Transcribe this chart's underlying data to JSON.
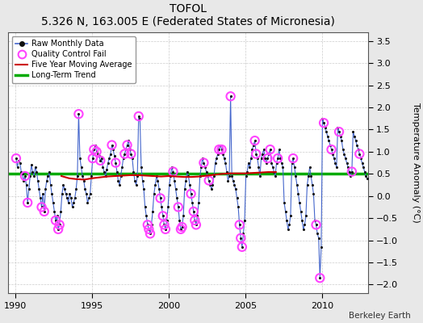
{
  "title": "TOFOL",
  "subtitle": "5.326 N, 163.005 E (Federated States of Micronesia)",
  "ylabel": "Temperature Anomaly (°C)",
  "credit": "Berkeley Earth",
  "xlim": [
    1989.5,
    2013.0
  ],
  "ylim": [
    -2.2,
    3.7
  ],
  "yticks": [
    -2,
    -1.5,
    -1,
    -0.5,
    0,
    0.5,
    1,
    1.5,
    2,
    2.5,
    3,
    3.5
  ],
  "xticks": [
    1990,
    1995,
    2000,
    2005,
    2010
  ],
  "long_term_trend_y": 0.5,
  "fig_bg_color": "#e8e8e8",
  "plot_bg_color": "#ffffff",
  "grid_color": "#cccccc",
  "raw_line_color": "#4466cc",
  "raw_dot_color": "#111111",
  "qc_fail_color": "#ff44ff",
  "moving_avg_color": "#cc0000",
  "trend_color": "#00aa00",
  "raw_data": [
    [
      1990.042,
      0.85
    ],
    [
      1990.125,
      0.65
    ],
    [
      1990.208,
      0.8
    ],
    [
      1990.292,
      0.75
    ],
    [
      1990.375,
      0.55
    ],
    [
      1990.458,
      0.5
    ],
    [
      1990.542,
      0.35
    ],
    [
      1990.625,
      0.45
    ],
    [
      1990.708,
      0.25
    ],
    [
      1990.792,
      -0.15
    ],
    [
      1990.875,
      0.15
    ],
    [
      1990.958,
      0.45
    ],
    [
      1991.042,
      0.7
    ],
    [
      1991.125,
      0.55
    ],
    [
      1991.208,
      0.45
    ],
    [
      1991.292,
      0.65
    ],
    [
      1991.375,
      0.55
    ],
    [
      1991.458,
      0.35
    ],
    [
      1991.542,
      0.15
    ],
    [
      1991.625,
      -0.05
    ],
    [
      1991.708,
      -0.25
    ],
    [
      1991.792,
      0.05
    ],
    [
      1991.875,
      -0.35
    ],
    [
      1991.958,
      0.15
    ],
    [
      1992.042,
      0.35
    ],
    [
      1992.125,
      0.45
    ],
    [
      1992.208,
      0.55
    ],
    [
      1992.292,
      0.25
    ],
    [
      1992.375,
      0.05
    ],
    [
      1992.458,
      -0.15
    ],
    [
      1992.542,
      -0.35
    ],
    [
      1992.625,
      -0.55
    ],
    [
      1992.708,
      -0.45
    ],
    [
      1992.792,
      -0.75
    ],
    [
      1992.875,
      -0.65
    ],
    [
      1992.958,
      -0.35
    ],
    [
      1993.042,
      0.05
    ],
    [
      1993.125,
      0.25
    ],
    [
      1993.208,
      0.15
    ],
    [
      1993.292,
      0.05
    ],
    [
      1993.375,
      -0.05
    ],
    [
      1993.458,
      -0.15
    ],
    [
      1993.542,
      0.05
    ],
    [
      1993.625,
      -0.05
    ],
    [
      1993.708,
      -0.25
    ],
    [
      1993.792,
      -0.15
    ],
    [
      1993.875,
      -0.05
    ],
    [
      1993.958,
      0.15
    ],
    [
      1994.042,
      0.45
    ],
    [
      1994.125,
      1.85
    ],
    [
      1994.208,
      0.85
    ],
    [
      1994.292,
      0.65
    ],
    [
      1994.375,
      0.45
    ],
    [
      1994.458,
      0.35
    ],
    [
      1994.542,
      0.15
    ],
    [
      1994.625,
      0.05
    ],
    [
      1994.708,
      -0.15
    ],
    [
      1994.792,
      -0.05
    ],
    [
      1994.875,
      0.05
    ],
    [
      1994.958,
      0.45
    ],
    [
      1995.042,
      0.85
    ],
    [
      1995.125,
      1.05
    ],
    [
      1995.208,
      1.15
    ],
    [
      1995.292,
      1.0
    ],
    [
      1995.375,
      0.95
    ],
    [
      1995.458,
      0.9
    ],
    [
      1995.542,
      0.8
    ],
    [
      1995.625,
      0.85
    ],
    [
      1995.708,
      0.65
    ],
    [
      1995.792,
      0.55
    ],
    [
      1995.875,
      0.45
    ],
    [
      1995.958,
      0.6
    ],
    [
      1996.042,
      0.75
    ],
    [
      1996.125,
      0.85
    ],
    [
      1996.208,
      0.95
    ],
    [
      1996.292,
      1.15
    ],
    [
      1996.375,
      1.05
    ],
    [
      1996.458,
      0.9
    ],
    [
      1996.542,
      0.75
    ],
    [
      1996.625,
      0.55
    ],
    [
      1996.708,
      0.35
    ],
    [
      1996.792,
      0.25
    ],
    [
      1996.875,
      0.45
    ],
    [
      1996.958,
      0.65
    ],
    [
      1997.042,
      0.85
    ],
    [
      1997.125,
      0.95
    ],
    [
      1997.208,
      1.05
    ],
    [
      1997.292,
      1.15
    ],
    [
      1997.375,
      1.25
    ],
    [
      1997.458,
      1.05
    ],
    [
      1997.542,
      0.95
    ],
    [
      1997.625,
      0.85
    ],
    [
      1997.708,
      0.55
    ],
    [
      1997.792,
      0.35
    ],
    [
      1997.875,
      0.25
    ],
    [
      1997.958,
      0.45
    ],
    [
      1998.042,
      1.8
    ],
    [
      1998.125,
      1.75
    ],
    [
      1998.208,
      0.65
    ],
    [
      1998.292,
      0.35
    ],
    [
      1998.375,
      0.15
    ],
    [
      1998.458,
      -0.25
    ],
    [
      1998.542,
      -0.45
    ],
    [
      1998.625,
      -0.65
    ],
    [
      1998.708,
      -0.75
    ],
    [
      1998.792,
      -0.85
    ],
    [
      1998.875,
      -0.65
    ],
    [
      1998.958,
      -0.35
    ],
    [
      1999.042,
      0.05
    ],
    [
      1999.125,
      0.25
    ],
    [
      1999.208,
      0.45
    ],
    [
      1999.292,
      0.35
    ],
    [
      1999.375,
      0.15
    ],
    [
      1999.458,
      -0.05
    ],
    [
      1999.542,
      -0.25
    ],
    [
      1999.625,
      -0.45
    ],
    [
      1999.708,
      -0.65
    ],
    [
      1999.792,
      -0.75
    ],
    [
      1999.875,
      -0.55
    ],
    [
      1999.958,
      -0.25
    ],
    [
      2000.042,
      0.25
    ],
    [
      2000.125,
      0.45
    ],
    [
      2000.208,
      0.65
    ],
    [
      2000.292,
      0.55
    ],
    [
      2000.375,
      0.35
    ],
    [
      2000.458,
      0.15
    ],
    [
      2000.542,
      -0.05
    ],
    [
      2000.625,
      -0.25
    ],
    [
      2000.708,
      -0.55
    ],
    [
      2000.792,
      -0.75
    ],
    [
      2000.875,
      -0.7
    ],
    [
      2000.958,
      -0.45
    ],
    [
      2001.042,
      0.15
    ],
    [
      2001.125,
      0.35
    ],
    [
      2001.208,
      0.55
    ],
    [
      2001.292,
      0.45
    ],
    [
      2001.375,
      0.25
    ],
    [
      2001.458,
      0.05
    ],
    [
      2001.542,
      -0.15
    ],
    [
      2001.625,
      -0.35
    ],
    [
      2001.708,
      -0.55
    ],
    [
      2001.792,
      -0.65
    ],
    [
      2001.875,
      -0.45
    ],
    [
      2001.958,
      -0.15
    ],
    [
      2002.042,
      0.45
    ],
    [
      2002.125,
      0.65
    ],
    [
      2002.208,
      0.85
    ],
    [
      2002.292,
      0.75
    ],
    [
      2002.375,
      0.65
    ],
    [
      2002.458,
      0.55
    ],
    [
      2002.542,
      0.45
    ],
    [
      2002.625,
      0.35
    ],
    [
      2002.708,
      0.25
    ],
    [
      2002.792,
      0.15
    ],
    [
      2002.875,
      0.25
    ],
    [
      2002.958,
      0.45
    ],
    [
      2003.042,
      0.75
    ],
    [
      2003.125,
      0.85
    ],
    [
      2003.208,
      0.95
    ],
    [
      2003.292,
      1.05
    ],
    [
      2003.375,
      1.15
    ],
    [
      2003.458,
      1.05
    ],
    [
      2003.542,
      0.95
    ],
    [
      2003.625,
      0.85
    ],
    [
      2003.708,
      0.75
    ],
    [
      2003.792,
      0.55
    ],
    [
      2003.875,
      0.35
    ],
    [
      2003.958,
      0.45
    ],
    [
      2004.042,
      2.25
    ],
    [
      2004.125,
      0.45
    ],
    [
      2004.208,
      0.35
    ],
    [
      2004.292,
      0.25
    ],
    [
      2004.375,
      0.15
    ],
    [
      2004.458,
      -0.05
    ],
    [
      2004.542,
      -0.25
    ],
    [
      2004.625,
      -0.65
    ],
    [
      2004.708,
      -0.95
    ],
    [
      2004.792,
      -1.15
    ],
    [
      2004.875,
      -0.85
    ],
    [
      2004.958,
      -0.55
    ],
    [
      2005.042,
      0.45
    ],
    [
      2005.125,
      0.55
    ],
    [
      2005.208,
      0.75
    ],
    [
      2005.292,
      0.65
    ],
    [
      2005.375,
      0.85
    ],
    [
      2005.458,
      1.05
    ],
    [
      2005.542,
      1.15
    ],
    [
      2005.625,
      1.25
    ],
    [
      2005.708,
      0.95
    ],
    [
      2005.792,
      0.85
    ],
    [
      2005.875,
      0.65
    ],
    [
      2005.958,
      0.45
    ],
    [
      2006.042,
      0.85
    ],
    [
      2006.125,
      0.95
    ],
    [
      2006.208,
      1.05
    ],
    [
      2006.292,
      0.85
    ],
    [
      2006.375,
      0.75
    ],
    [
      2006.458,
      0.85
    ],
    [
      2006.542,
      0.95
    ],
    [
      2006.625,
      1.05
    ],
    [
      2006.708,
      0.75
    ],
    [
      2006.792,
      0.65
    ],
    [
      2006.875,
      0.55
    ],
    [
      2006.958,
      0.45
    ],
    [
      2007.042,
      0.75
    ],
    [
      2007.125,
      0.85
    ],
    [
      2007.208,
      1.05
    ],
    [
      2007.292,
      0.85
    ],
    [
      2007.375,
      0.75
    ],
    [
      2007.458,
      0.65
    ],
    [
      2007.542,
      -0.15
    ],
    [
      2007.625,
      -0.35
    ],
    [
      2007.708,
      -0.55
    ],
    [
      2007.792,
      -0.75
    ],
    [
      2007.875,
      -0.65
    ],
    [
      2007.958,
      -0.45
    ],
    [
      2008.042,
      0.75
    ],
    [
      2008.125,
      0.85
    ],
    [
      2008.208,
      0.65
    ],
    [
      2008.292,
      0.45
    ],
    [
      2008.375,
      0.25
    ],
    [
      2008.458,
      0.05
    ],
    [
      2008.542,
      -0.15
    ],
    [
      2008.625,
      -0.35
    ],
    [
      2008.708,
      -0.55
    ],
    [
      2008.792,
      -0.75
    ],
    [
      2008.875,
      -0.65
    ],
    [
      2008.958,
      -0.45
    ],
    [
      2009.042,
      0.25
    ],
    [
      2009.125,
      0.45
    ],
    [
      2009.208,
      0.65
    ],
    [
      2009.292,
      0.45
    ],
    [
      2009.375,
      0.25
    ],
    [
      2009.458,
      0.05
    ],
    [
      2009.542,
      -0.55
    ],
    [
      2009.625,
      -0.65
    ],
    [
      2009.708,
      -0.85
    ],
    [
      2009.792,
      -0.95
    ],
    [
      2009.875,
      -1.85
    ],
    [
      2009.958,
      -1.15
    ],
    [
      2010.042,
      1.75
    ],
    [
      2010.125,
      1.65
    ],
    [
      2010.208,
      1.55
    ],
    [
      2010.292,
      1.45
    ],
    [
      2010.375,
      1.35
    ],
    [
      2010.458,
      1.25
    ],
    [
      2010.542,
      1.15
    ],
    [
      2010.625,
      1.05
    ],
    [
      2010.708,
      0.95
    ],
    [
      2010.792,
      0.85
    ],
    [
      2010.875,
      0.75
    ],
    [
      2010.958,
      0.65
    ],
    [
      2011.042,
      1.55
    ],
    [
      2011.125,
      1.45
    ],
    [
      2011.208,
      1.35
    ],
    [
      2011.292,
      1.25
    ],
    [
      2011.375,
      1.05
    ],
    [
      2011.458,
      0.95
    ],
    [
      2011.542,
      0.85
    ],
    [
      2011.625,
      0.75
    ],
    [
      2011.708,
      0.65
    ],
    [
      2011.792,
      0.55
    ],
    [
      2011.875,
      0.45
    ],
    [
      2011.958,
      0.55
    ],
    [
      2012.042,
      1.45
    ],
    [
      2012.125,
      1.35
    ],
    [
      2012.208,
      1.25
    ],
    [
      2012.292,
      1.15
    ],
    [
      2012.375,
      1.05
    ],
    [
      2012.458,
      0.95
    ],
    [
      2012.542,
      0.85
    ],
    [
      2012.625,
      0.75
    ],
    [
      2012.708,
      0.65
    ],
    [
      2012.792,
      0.55
    ],
    [
      2012.875,
      0.45
    ],
    [
      2012.958,
      0.4
    ]
  ],
  "qc_fail_points": [
    [
      1990.042,
      0.85
    ],
    [
      1990.625,
      0.45
    ],
    [
      1990.792,
      -0.15
    ],
    [
      1991.708,
      -0.25
    ],
    [
      1991.875,
      -0.35
    ],
    [
      1992.625,
      -0.55
    ],
    [
      1992.792,
      -0.75
    ],
    [
      1992.875,
      -0.65
    ],
    [
      1994.125,
      1.85
    ],
    [
      1995.042,
      0.85
    ],
    [
      1995.125,
      1.05
    ],
    [
      1995.292,
      1.0
    ],
    [
      1995.542,
      0.8
    ],
    [
      1996.292,
      1.15
    ],
    [
      1996.542,
      0.75
    ],
    [
      1997.125,
      0.95
    ],
    [
      1997.292,
      1.15
    ],
    [
      1997.542,
      0.95
    ],
    [
      1998.042,
      1.8
    ],
    [
      1998.625,
      -0.65
    ],
    [
      1998.708,
      -0.75
    ],
    [
      1998.792,
      -0.85
    ],
    [
      1999.458,
      -0.05
    ],
    [
      1999.625,
      -0.45
    ],
    [
      1999.708,
      -0.65
    ],
    [
      1999.792,
      -0.75
    ],
    [
      2000.292,
      0.55
    ],
    [
      2000.625,
      -0.25
    ],
    [
      2000.792,
      -0.75
    ],
    [
      2000.875,
      -0.7
    ],
    [
      2001.458,
      0.05
    ],
    [
      2001.625,
      -0.35
    ],
    [
      2001.708,
      -0.55
    ],
    [
      2001.792,
      -0.65
    ],
    [
      2002.292,
      0.75
    ],
    [
      2002.625,
      0.35
    ],
    [
      2003.292,
      1.05
    ],
    [
      2003.458,
      1.05
    ],
    [
      2004.042,
      2.25
    ],
    [
      2004.625,
      -0.65
    ],
    [
      2004.708,
      -0.95
    ],
    [
      2004.792,
      -1.15
    ],
    [
      2005.625,
      1.25
    ],
    [
      2005.708,
      0.95
    ],
    [
      2006.458,
      0.85
    ],
    [
      2006.625,
      1.05
    ],
    [
      2007.125,
      0.85
    ],
    [
      2008.125,
      0.85
    ],
    [
      2009.625,
      -0.65
    ],
    [
      2009.875,
      -1.85
    ],
    [
      2010.125,
      1.65
    ],
    [
      2010.625,
      1.05
    ],
    [
      2011.125,
      1.45
    ],
    [
      2011.958,
      0.55
    ],
    [
      2012.458,
      0.95
    ]
  ],
  "moving_avg": [
    [
      1993.0,
      0.45
    ],
    [
      1993.5,
      0.4
    ],
    [
      1994.0,
      0.38
    ],
    [
      1994.5,
      0.37
    ],
    [
      1995.0,
      0.4
    ],
    [
      1995.5,
      0.42
    ],
    [
      1996.0,
      0.44
    ],
    [
      1996.5,
      0.45
    ],
    [
      1997.0,
      0.46
    ],
    [
      1997.5,
      0.47
    ],
    [
      1998.0,
      0.47
    ],
    [
      1998.5,
      0.46
    ],
    [
      1999.0,
      0.45
    ],
    [
      1999.5,
      0.44
    ],
    [
      2000.0,
      0.45
    ],
    [
      2000.5,
      0.44
    ],
    [
      2001.0,
      0.43
    ],
    [
      2001.5,
      0.43
    ],
    [
      2002.0,
      0.44
    ],
    [
      2002.5,
      0.46
    ],
    [
      2003.0,
      0.48
    ],
    [
      2003.5,
      0.5
    ],
    [
      2004.0,
      0.51
    ],
    [
      2004.5,
      0.51
    ],
    [
      2005.0,
      0.51
    ],
    [
      2005.5,
      0.52
    ],
    [
      2006.0,
      0.53
    ],
    [
      2006.5,
      0.54
    ],
    [
      2007.0,
      0.54
    ]
  ]
}
